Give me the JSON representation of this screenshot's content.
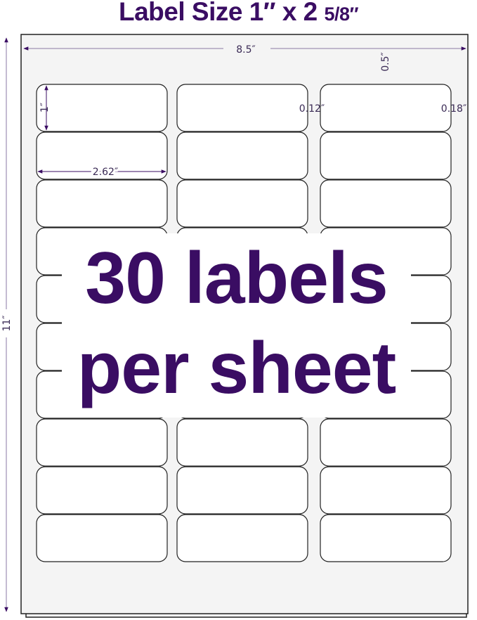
{
  "title": {
    "main": "Label Size 1″ x 2 ",
    "fraction": "5/8″"
  },
  "dimensions": {
    "sheet_width": "8.5″",
    "sheet_height": "11″",
    "top_margin": "0.5″",
    "label_height": "1″",
    "label_width": "2.62″",
    "column_gap": "0.12″",
    "side_margin": "0.18″"
  },
  "layout": {
    "columns": 3,
    "rows": 10
  },
  "headline": {
    "line1": "30 labels",
    "line2": "per sheet"
  },
  "colors": {
    "accent": "#3a0d63",
    "sheet": "#f4f4f4",
    "outline": "#222222"
  }
}
